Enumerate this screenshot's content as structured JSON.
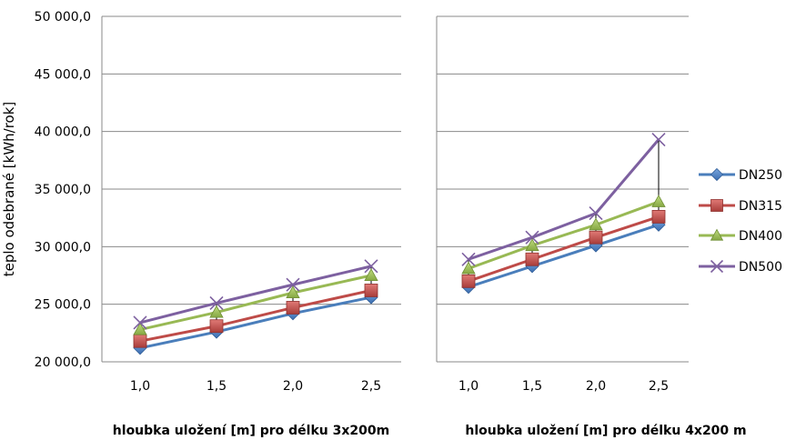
{
  "chart_data": {
    "type": "line",
    "ylabel": "teplo odebrané [kWh/rok]",
    "ylim": [
      20000,
      50000
    ],
    "yticks": [
      "20 000,0",
      "25 000,0",
      "30 000,0",
      "35 000,0",
      "40 000,0",
      "45 000,0",
      "50 000,0"
    ],
    "ytick_values": [
      20000,
      25000,
      30000,
      35000,
      40000,
      45000,
      50000
    ],
    "grid": true,
    "legend_position": "right",
    "legend": [
      "DN250",
      "DN315",
      "DN400",
      "DN500"
    ],
    "colors": {
      "DN250": "#4a7ebb",
      "DN315": "#be4b48",
      "DN400": "#98b954",
      "DN500": "#7d60a0"
    },
    "panels": [
      {
        "xlabel": "hloubka uložení [m] pro délku 3x200m",
        "categories": [
          "1,0",
          "1,5",
          "2,0",
          "2,5"
        ],
        "series": [
          {
            "name": "DN250",
            "values": [
              21200,
              22600,
              24200,
              25600
            ]
          },
          {
            "name": "DN315",
            "values": [
              21800,
              23100,
              24700,
              26200
            ]
          },
          {
            "name": "DN400",
            "values": [
              22800,
              24300,
              26000,
              27500
            ]
          },
          {
            "name": "DN500",
            "values": [
              23400,
              25100,
              26700,
              28300
            ]
          }
        ]
      },
      {
        "xlabel": "hloubka uložení [m] pro délku 4x200 m",
        "categories": [
          "1,0",
          "1,5",
          "2,0",
          "2,5"
        ],
        "series": [
          {
            "name": "DN250",
            "values": [
              26500,
              28300,
              30100,
              31900
            ]
          },
          {
            "name": "DN315",
            "values": [
              27000,
              28900,
              30800,
              32600
            ]
          },
          {
            "name": "DN400",
            "values": [
              28100,
              30100,
              31900,
              33900
            ]
          },
          {
            "name": "DN500",
            "values": [
              28900,
              30800,
              32900,
              39300
            ]
          }
        ]
      }
    ]
  }
}
